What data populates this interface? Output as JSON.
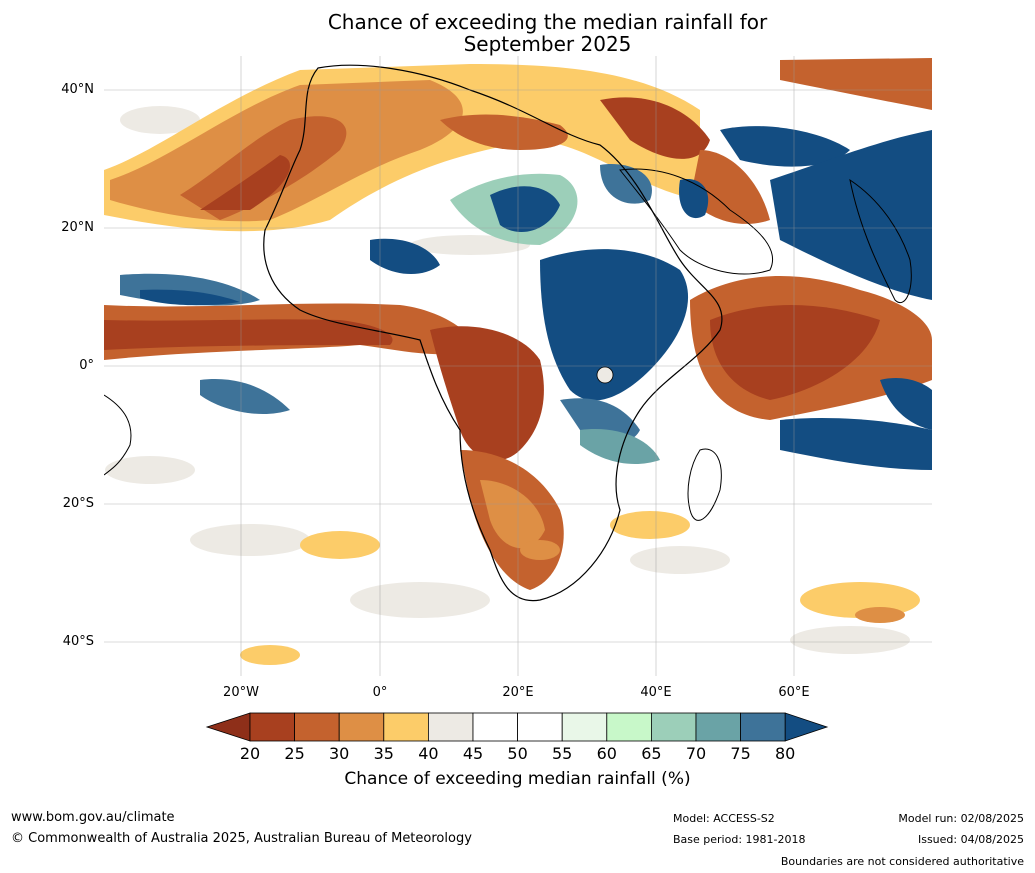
{
  "title_line1": "Chance of exceeding the median rainfall for",
  "title_line2": "September 2025",
  "lat_labels": [
    "40°N",
    "20°N",
    "0°",
    "20°S",
    "40°S"
  ],
  "lon_labels": [
    "20°W",
    "0°",
    "20°E",
    "40°E",
    "60°E"
  ],
  "colorbar": {
    "ticks": [
      "20",
      "25",
      "30",
      "35",
      "40",
      "45",
      "50",
      "55",
      "60",
      "65",
      "70",
      "75",
      "80"
    ],
    "colors": [
      "#8e2f19",
      "#a8401f",
      "#c4622e",
      "#de8f45",
      "#fccc69",
      "#edeae4",
      "#ffffff",
      "#ffffff",
      "#e9f7e8",
      "#c8f8c9",
      "#9ccfb9",
      "#6aa3a6",
      "#3e7399",
      "#134d82"
    ],
    "label": "Chance of exceeding median rainfall (%)"
  },
  "footer": {
    "website": "www.bom.gov.au/climate",
    "copyright": "© Commonwealth of Australia 2025, Australian Bureau of Meteorology",
    "model": "Model: ACCESS-S2",
    "base_period": "Base period: 1981-2018",
    "model_run": "Model run: 02/08/2025",
    "issued": "Issued: 04/08/2025",
    "disclaimer": "Boundaries are not considered authoritative"
  }
}
